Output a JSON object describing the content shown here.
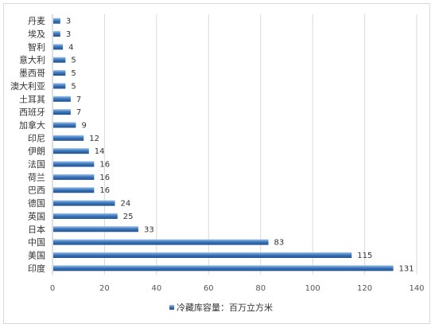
{
  "chart_data": {
    "type": "bar",
    "orientation": "horizontal",
    "categories": [
      "丹麦",
      "埃及",
      "智利",
      "意大利",
      "墨西哥",
      "澳大利亚",
      "土耳其",
      "西班牙",
      "加拿大",
      "印尼",
      "伊朗",
      "法国",
      "荷兰",
      "巴西",
      "德国",
      "英国",
      "日本",
      "中国",
      "美国",
      "印度"
    ],
    "series": [
      {
        "name": "冷藏库容量：百万立方米",
        "values": [
          3,
          3,
          4,
          5,
          5,
          5,
          7,
          7,
          9,
          12,
          14,
          16,
          16,
          16,
          24,
          25,
          33,
          83,
          115,
          131
        ]
      }
    ],
    "xlim": [
      0,
      140
    ],
    "xticks": [
      0,
      20,
      40,
      60,
      80,
      100,
      120,
      140
    ],
    "grid": "vertical",
    "legend": "bottom",
    "data_labels": true,
    "bar_color": "#3f79bf"
  }
}
